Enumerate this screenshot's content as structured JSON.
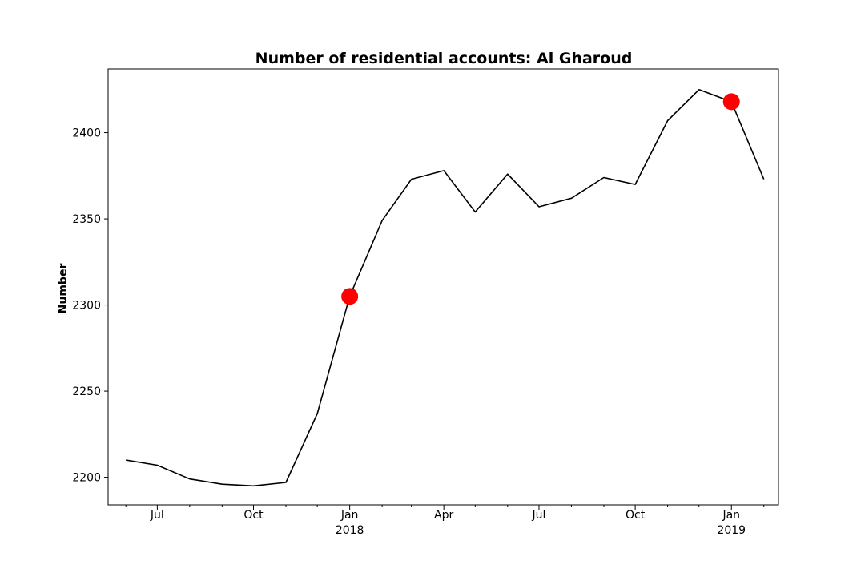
{
  "chart_data": {
    "type": "line",
    "title": "Number of residential accounts: Al Gharoud",
    "xlabel": "",
    "ylabel": "Number",
    "xlim": [
      "2017-05-15",
      "2019-02-15"
    ],
    "ylim": [
      2184,
      2437
    ],
    "y_ticks": [
      2200,
      2250,
      2300,
      2350,
      2400
    ],
    "x_ticks": [
      {
        "date": "2017-07-01",
        "label": "Jul",
        "sublabel": ""
      },
      {
        "date": "2017-10-01",
        "label": "Oct",
        "sublabel": ""
      },
      {
        "date": "2018-01-01",
        "label": "Jan",
        "sublabel": "2018"
      },
      {
        "date": "2018-04-01",
        "label": "Apr",
        "sublabel": ""
      },
      {
        "date": "2018-07-01",
        "label": "Jul",
        "sublabel": ""
      },
      {
        "date": "2018-10-01",
        "label": "Oct",
        "sublabel": ""
      },
      {
        "date": "2019-01-01",
        "label": "Jan",
        "sublabel": "2019"
      }
    ],
    "minor_ticks": [
      "2017-06-01",
      "2017-08-01",
      "2017-09-01",
      "2017-11-01",
      "2017-12-01",
      "2018-02-01",
      "2018-03-01",
      "2018-05-01",
      "2018-06-01",
      "2018-08-01",
      "2018-09-01",
      "2018-11-01",
      "2018-12-01",
      "2019-02-01"
    ],
    "grid": false,
    "legend": "none",
    "series": [
      {
        "color": "#000000",
        "x": [
          "2017-06-01",
          "2017-07-01",
          "2017-08-01",
          "2017-09-01",
          "2017-10-01",
          "2017-11-01",
          "2017-12-01",
          "2018-01-01",
          "2018-02-01",
          "2018-03-01",
          "2018-04-01",
          "2018-05-01",
          "2018-06-01",
          "2018-07-01",
          "2018-08-01",
          "2018-09-01",
          "2018-10-01",
          "2018-11-01",
          "2018-12-01",
          "2019-01-01",
          "2019-02-01"
        ],
        "y": [
          2210,
          2207,
          2199,
          2196,
          2195,
          2197,
          2237,
          2305,
          2349,
          2373,
          2378,
          2354,
          2376,
          2357,
          2362,
          2374,
          2370,
          2407,
          2425,
          2418,
          2373
        ]
      }
    ],
    "markers": {
      "color": "#ff0000",
      "points": [
        {
          "x": "2018-01-01",
          "y": 2305
        },
        {
          "x": "2019-01-01",
          "y": 2418
        }
      ]
    }
  }
}
